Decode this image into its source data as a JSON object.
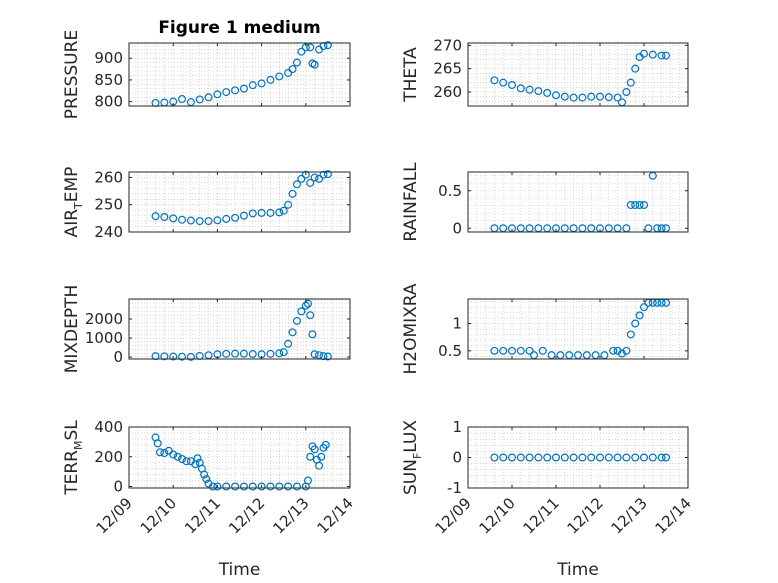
{
  "figure": {
    "title": "Figure 1 medium"
  },
  "chart_data": [
    {
      "type": "scatter",
      "ylabel": "PRESSURE",
      "ylabel_main": "PRESSURE",
      "ylabel_sub": "",
      "ylabel_tail": "",
      "yticks": [
        800,
        850,
        900
      ],
      "ylim": [
        790,
        935
      ],
      "xlim": [
        "12/09",
        "12/14"
      ],
      "xticks": [
        "12/09",
        "12/10",
        "12/11",
        "12/12",
        "12/13",
        "12/14"
      ],
      "grid": true,
      "title": "Figure 1 medium",
      "points": [
        [
          9.6,
          797
        ],
        [
          9.8,
          798
        ],
        [
          10.0,
          800
        ],
        [
          10.2,
          806
        ],
        [
          10.4,
          799
        ],
        [
          10.6,
          805
        ],
        [
          10.8,
          810
        ],
        [
          11.0,
          817
        ],
        [
          11.2,
          822
        ],
        [
          11.4,
          826
        ],
        [
          11.6,
          830
        ],
        [
          11.8,
          838
        ],
        [
          12.0,
          842
        ],
        [
          12.2,
          850
        ],
        [
          12.4,
          858
        ],
        [
          12.6,
          866
        ],
        [
          12.7,
          875
        ],
        [
          12.8,
          890
        ],
        [
          12.9,
          915
        ],
        [
          13.0,
          925
        ],
        [
          13.1,
          925
        ],
        [
          13.15,
          888
        ],
        [
          13.2,
          885
        ],
        [
          13.3,
          920
        ],
        [
          13.4,
          928
        ],
        [
          13.5,
          930
        ]
      ]
    },
    {
      "type": "scatter",
      "ylabel": "THETA",
      "ylabel_main": "THETA",
      "ylabel_sub": "",
      "ylabel_tail": "",
      "yticks": [
        260,
        265,
        270
      ],
      "ylim": [
        257,
        270.5
      ],
      "xlim": [
        "12/09",
        "12/14"
      ],
      "xticks": [
        "12/09",
        "12/10",
        "12/11",
        "12/12",
        "12/13",
        "12/14"
      ],
      "grid": true,
      "title": "",
      "points": [
        [
          9.6,
          262.5
        ],
        [
          9.8,
          262
        ],
        [
          10.0,
          261.5
        ],
        [
          10.2,
          260.8
        ],
        [
          10.4,
          260.5
        ],
        [
          10.6,
          260.2
        ],
        [
          10.8,
          259.8
        ],
        [
          11.0,
          259.3
        ],
        [
          11.2,
          259
        ],
        [
          11.4,
          258.8
        ],
        [
          11.6,
          258.8
        ],
        [
          11.8,
          259
        ],
        [
          12.0,
          259
        ],
        [
          12.2,
          258.9
        ],
        [
          12.4,
          258.8
        ],
        [
          12.5,
          257.8
        ],
        [
          12.6,
          260
        ],
        [
          12.7,
          262
        ],
        [
          12.8,
          265
        ],
        [
          12.9,
          267.5
        ],
        [
          13.0,
          268.2
        ],
        [
          13.2,
          268
        ],
        [
          13.4,
          267.8
        ],
        [
          13.5,
          267.8
        ]
      ]
    },
    {
      "type": "scatter",
      "ylabel": "AIR_TEMP",
      "ylabel_main": "AIR",
      "ylabel_sub": "T",
      "ylabel_tail": "EMP",
      "yticks": [
        240,
        250,
        260
      ],
      "ylim": [
        240,
        262
      ],
      "xlim": [
        "12/09",
        "12/14"
      ],
      "xticks": [
        "12/09",
        "12/10",
        "12/11",
        "12/12",
        "12/13",
        "12/14"
      ],
      "grid": true,
      "title": "",
      "points": [
        [
          9.6,
          245.8
        ],
        [
          9.8,
          245.5
        ],
        [
          10.0,
          245
        ],
        [
          10.2,
          244.5
        ],
        [
          10.4,
          244.2
        ],
        [
          10.6,
          244
        ],
        [
          10.8,
          244
        ],
        [
          11.0,
          244.3
        ],
        [
          11.2,
          244.8
        ],
        [
          11.4,
          245.2
        ],
        [
          11.6,
          246
        ],
        [
          11.8,
          246.8
        ],
        [
          12.0,
          247
        ],
        [
          12.2,
          247
        ],
        [
          12.4,
          247.2
        ],
        [
          12.5,
          247.8
        ],
        [
          12.6,
          250
        ],
        [
          12.7,
          254
        ],
        [
          12.8,
          257.5
        ],
        [
          12.9,
          259.5
        ],
        [
          13.0,
          261
        ],
        [
          13.1,
          258
        ],
        [
          13.2,
          260
        ],
        [
          13.3,
          259.5
        ],
        [
          13.4,
          261
        ],
        [
          13.5,
          261.2
        ]
      ]
    },
    {
      "type": "scatter",
      "ylabel": "RAINFALL",
      "ylabel_main": "RAINFALL",
      "ylabel_sub": "",
      "ylabel_tail": "",
      "yticks": [
        0,
        0.5
      ],
      "ylim": [
        -0.05,
        0.75
      ],
      "xlim": [
        "12/09",
        "12/14"
      ],
      "xticks": [
        "12/09",
        "12/10",
        "12/11",
        "12/12",
        "12/13",
        "12/14"
      ],
      "grid": true,
      "title": "",
      "points": [
        [
          9.6,
          0
        ],
        [
          9.8,
          0
        ],
        [
          10.0,
          0
        ],
        [
          10.2,
          0
        ],
        [
          10.4,
          0
        ],
        [
          10.6,
          0
        ],
        [
          10.8,
          0
        ],
        [
          11.0,
          0
        ],
        [
          11.2,
          0
        ],
        [
          11.4,
          0
        ],
        [
          11.6,
          0
        ],
        [
          11.8,
          0
        ],
        [
          12.0,
          0
        ],
        [
          12.2,
          0
        ],
        [
          12.4,
          0
        ],
        [
          12.6,
          0
        ],
        [
          12.7,
          0.31
        ],
        [
          12.8,
          0.31
        ],
        [
          12.9,
          0.31
        ],
        [
          13.0,
          0.31
        ],
        [
          13.1,
          0
        ],
        [
          13.2,
          0.7
        ],
        [
          13.3,
          0
        ],
        [
          13.4,
          0
        ],
        [
          13.5,
          0
        ]
      ]
    },
    {
      "type": "scatter",
      "ylabel": "MIXDEPTH",
      "ylabel_main": "MIXDEPTH",
      "ylabel_sub": "",
      "ylabel_tail": "",
      "yticks": [
        0,
        1000,
        2000
      ],
      "ylim": [
        -100,
        3050
      ],
      "xlim": [
        "12/09",
        "12/14"
      ],
      "xticks": [
        "12/09",
        "12/10",
        "12/11",
        "12/12",
        "12/13",
        "12/14"
      ],
      "grid": true,
      "title": "",
      "points": [
        [
          9.6,
          50
        ],
        [
          9.8,
          40
        ],
        [
          10.0,
          30
        ],
        [
          10.2,
          20
        ],
        [
          10.4,
          10
        ],
        [
          10.6,
          60
        ],
        [
          10.8,
          100
        ],
        [
          11.0,
          150
        ],
        [
          11.2,
          170
        ],
        [
          11.4,
          180
        ],
        [
          11.6,
          180
        ],
        [
          11.8,
          160
        ],
        [
          12.0,
          150
        ],
        [
          12.2,
          170
        ],
        [
          12.4,
          200
        ],
        [
          12.5,
          260
        ],
        [
          12.6,
          700
        ],
        [
          12.7,
          1300
        ],
        [
          12.8,
          1900
        ],
        [
          12.9,
          2400
        ],
        [
          13.0,
          2700
        ],
        [
          13.05,
          2800
        ],
        [
          13.1,
          2200
        ],
        [
          13.15,
          1200
        ],
        [
          13.2,
          150
        ],
        [
          13.3,
          100
        ],
        [
          13.4,
          50
        ],
        [
          13.5,
          30
        ]
      ]
    },
    {
      "type": "scatter",
      "ylabel": "H2OMIXRA",
      "ylabel_main": "H2OMIXRA",
      "ylabel_sub": "",
      "ylabel_tail": "",
      "yticks": [
        0.5,
        1
      ],
      "ylim": [
        0.35,
        1.45
      ],
      "xlim": [
        "12/09",
        "12/14"
      ],
      "xticks": [
        "12/09",
        "12/10",
        "12/11",
        "12/12",
        "12/13",
        "12/14"
      ],
      "grid": true,
      "title": "",
      "points": [
        [
          9.6,
          0.5
        ],
        [
          9.8,
          0.5
        ],
        [
          10.0,
          0.5
        ],
        [
          10.2,
          0.5
        ],
        [
          10.4,
          0.5
        ],
        [
          10.5,
          0.42
        ],
        [
          10.7,
          0.5
        ],
        [
          10.9,
          0.42
        ],
        [
          11.1,
          0.42
        ],
        [
          11.3,
          0.42
        ],
        [
          11.5,
          0.42
        ],
        [
          11.7,
          0.42
        ],
        [
          11.9,
          0.42
        ],
        [
          12.1,
          0.42
        ],
        [
          12.3,
          0.5
        ],
        [
          12.4,
          0.5
        ],
        [
          12.5,
          0.45
        ],
        [
          12.6,
          0.5
        ],
        [
          12.7,
          0.8
        ],
        [
          12.8,
          1.0
        ],
        [
          12.9,
          1.15
        ],
        [
          13.0,
          1.3
        ],
        [
          13.1,
          1.38
        ],
        [
          13.2,
          1.38
        ],
        [
          13.3,
          1.38
        ],
        [
          13.4,
          1.38
        ],
        [
          13.5,
          1.38
        ]
      ]
    },
    {
      "type": "scatter",
      "ylabel": "TERR_MSL",
      "ylabel_main": "TERR",
      "ylabel_sub": "M",
      "ylabel_tail": "SL",
      "yticks": [
        0,
        200,
        400
      ],
      "ylim": [
        -10,
        400
      ],
      "xlim": [
        "12/09",
        "12/14"
      ],
      "xticks": [
        "12/09",
        "12/10",
        "12/11",
        "12/12",
        "12/13",
        "12/14"
      ],
      "grid": true,
      "title": "",
      "points": [
        [
          9.6,
          330
        ],
        [
          9.65,
          290
        ],
        [
          9.7,
          230
        ],
        [
          9.8,
          225
        ],
        [
          9.9,
          240
        ],
        [
          10.0,
          215
        ],
        [
          10.1,
          200
        ],
        [
          10.2,
          185
        ],
        [
          10.3,
          170
        ],
        [
          10.4,
          170
        ],
        [
          10.5,
          150
        ],
        [
          10.55,
          190
        ],
        [
          10.6,
          160
        ],
        [
          10.65,
          120
        ],
        [
          10.7,
          80
        ],
        [
          10.75,
          50
        ],
        [
          10.8,
          20
        ],
        [
          10.9,
          0
        ],
        [
          11.0,
          0
        ],
        [
          11.2,
          0
        ],
        [
          11.4,
          0
        ],
        [
          11.6,
          0
        ],
        [
          11.8,
          0
        ],
        [
          12.0,
          0
        ],
        [
          12.2,
          0
        ],
        [
          12.4,
          0
        ],
        [
          12.6,
          0
        ],
        [
          12.8,
          0
        ],
        [
          13.0,
          0
        ],
        [
          13.05,
          40
        ],
        [
          13.1,
          200
        ],
        [
          13.15,
          270
        ],
        [
          13.2,
          250
        ],
        [
          13.25,
          180
        ],
        [
          13.3,
          140
        ],
        [
          13.35,
          200
        ],
        [
          13.4,
          260
        ],
        [
          13.45,
          280
        ]
      ]
    },
    {
      "type": "scatter",
      "ylabel": "SUN_FLUX",
      "ylabel_main": "SUN",
      "ylabel_sub": "F",
      "ylabel_tail": "LUX",
      "yticks": [
        -1,
        0,
        1
      ],
      "ylim": [
        -1,
        1
      ],
      "xlim": [
        "12/09",
        "12/14"
      ],
      "xticks": [
        "12/09",
        "12/10",
        "12/11",
        "12/12",
        "12/13",
        "12/14"
      ],
      "grid": true,
      "title": "",
      "points": [
        [
          9.6,
          0
        ],
        [
          9.8,
          0
        ],
        [
          10.0,
          0
        ],
        [
          10.2,
          0
        ],
        [
          10.4,
          0
        ],
        [
          10.6,
          0
        ],
        [
          10.8,
          0
        ],
        [
          11.0,
          0
        ],
        [
          11.2,
          0
        ],
        [
          11.4,
          0
        ],
        [
          11.6,
          0
        ],
        [
          11.8,
          0
        ],
        [
          12.0,
          0
        ],
        [
          12.2,
          0
        ],
        [
          12.4,
          0
        ],
        [
          12.6,
          0
        ],
        [
          12.8,
          0
        ],
        [
          13.0,
          0
        ],
        [
          13.2,
          0
        ],
        [
          13.4,
          0
        ],
        [
          13.5,
          0
        ]
      ]
    }
  ],
  "xlabel": "Time",
  "colors": {
    "marker": "#0072BD",
    "axis": "#262626",
    "grid": "#bdbdbd"
  }
}
